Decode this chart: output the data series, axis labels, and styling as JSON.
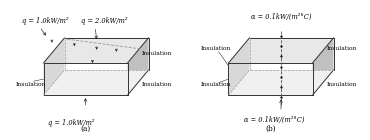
{
  "fig_width": 3.7,
  "fig_height": 1.4,
  "dpi": 100,
  "background_color": "#ffffff",
  "box_a": {
    "label": "(a)",
    "annotations": {
      "top_left_label": "q = 1.0kW/m²",
      "top_right_label": "q = 2.0kW/m²",
      "bottom_label": "q = 1.0kW/m²",
      "left_label": "Insulation",
      "right_top_label": "Insulation",
      "right_bot_label": "Insulation"
    }
  },
  "box_b": {
    "label": "(b)",
    "annotations": {
      "top_label": "α = 0.1kW/(m²°C)",
      "bottom_label": "α = 0.1kW/(m²°C)",
      "left_top_label": "Insulation",
      "left_bot_label": "Insulation",
      "right_top_label": "Insulation",
      "right_bot_label": "Insulation"
    }
  },
  "line_color": "#333333",
  "dashed_color": "#999999",
  "text_color": "#000000",
  "face_top": "#e8e8e8",
  "face_front": "#d8d8d8",
  "face_right": "#c0c0c0"
}
